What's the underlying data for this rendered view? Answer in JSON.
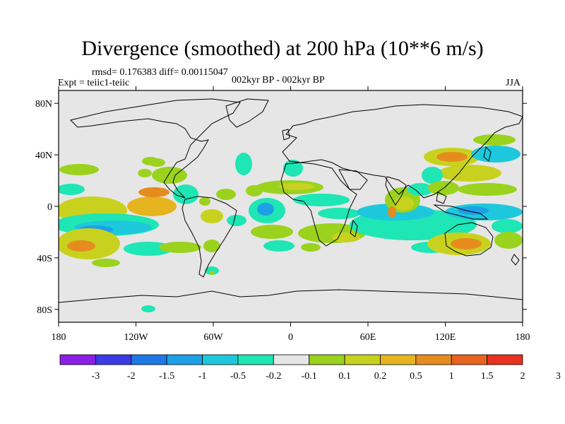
{
  "title": "Divergence (smoothed) at 200 hPa (10**6 m/s)",
  "stats": "rmsd= 0.176383 diff= 0.00115047",
  "experiment": "Expt = teiic1-teiic",
  "period": "002kyr BP - 002kyr BP",
  "season": "JJA",
  "map": {
    "lon_range": [
      -180,
      180
    ],
    "lat_range": [
      -90,
      90
    ],
    "lat_ticks": [
      "80N",
      "40N",
      "0",
      "40S",
      "80S"
    ],
    "lon_ticks": [
      "180",
      "120W",
      "60W",
      "0",
      "60E",
      "120E",
      "180"
    ],
    "ocean_fill": "#e6e6e6"
  },
  "colorbar": {
    "labels": [
      "-3",
      "-2",
      "-1.5",
      "-1",
      "-0.5",
      "-0.2",
      "-0.1",
      "0.1",
      "0.2",
      "0.5",
      "1",
      "1.5",
      "2",
      "3"
    ],
    "colors": [
      "#8c1fe6",
      "#3c3ce6",
      "#1e78e6",
      "#1ea0e6",
      "#1ec8dc",
      "#1ee6b4",
      "#e6e6e6",
      "#9bd21e",
      "#c8d21e",
      "#e6b41e",
      "#e68c1e",
      "#e6641e",
      "#e6321e"
    ]
  },
  "colors": {
    "neg_strong": "#1ea0e6",
    "neg": "#1ec8dc",
    "neg_weak": "#1ee6b4",
    "pos_weak": "#9bd21e",
    "pos": "#c8d21e",
    "pos_strong": "#e6b41e",
    "pos_max": "#e68c1e"
  }
}
